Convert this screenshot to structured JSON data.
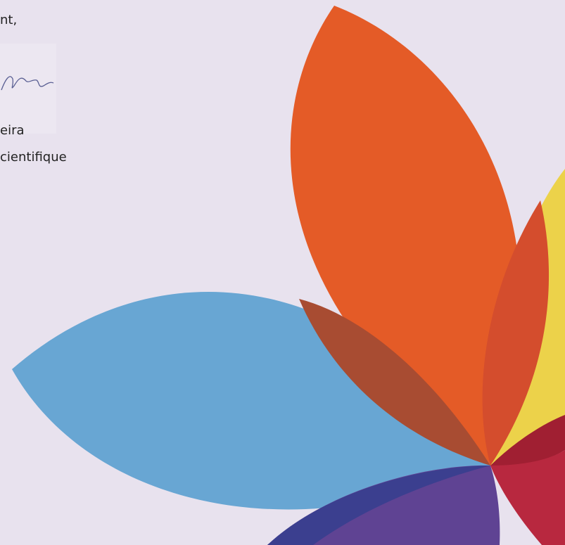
{
  "letter": {
    "closing": "nt,",
    "signer_name": "eira",
    "signer_title": "cientifique"
  }
}
